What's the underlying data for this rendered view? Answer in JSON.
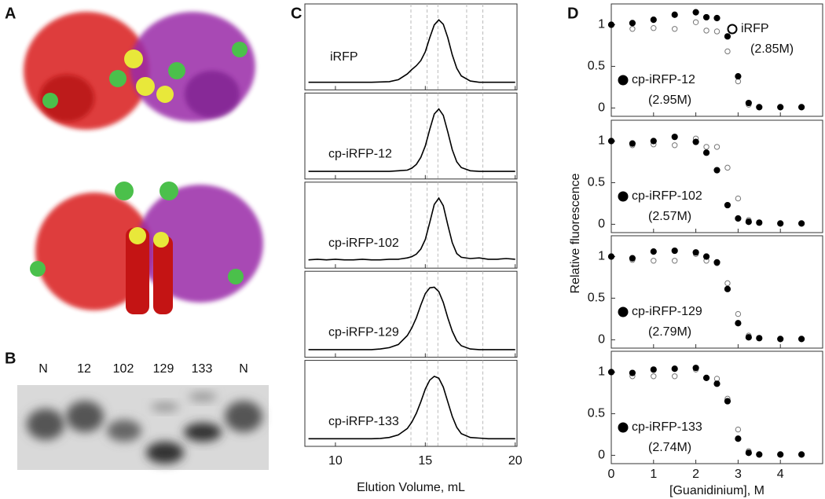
{
  "panel_a": {
    "label": "A"
  },
  "panel_b": {
    "label": "B",
    "lanes": [
      "N",
      "12",
      "102",
      "129",
      "133",
      "N"
    ]
  },
  "chart_data": [
    {
      "type": "line",
      "label": "C",
      "xlabel": "Elution Volume, mL",
      "xlim": [
        8.3,
        20.1
      ],
      "xticks": [
        10,
        15,
        20
      ],
      "ylim": [
        -0.1,
        1.25
      ],
      "vlines": [
        14.2,
        15.1,
        15.7,
        17.3,
        18.2
      ],
      "x": [
        8.5,
        9,
        9.5,
        10,
        10.5,
        11,
        11.5,
        12,
        12.5,
        13,
        13.5,
        14,
        14.25,
        14.5,
        14.75,
        15,
        15.25,
        15.5,
        15.75,
        16,
        16.25,
        16.5,
        16.75,
        17,
        17.5,
        18,
        18.5,
        19,
        19.5,
        20
      ],
      "series": [
        {
          "name": "iRFP",
          "color": "#000000",
          "values": [
            0.02,
            0.02,
            0.02,
            0.02,
            0.02,
            0.02,
            0.02,
            0.02,
            0.025,
            0.03,
            0.06,
            0.15,
            0.22,
            0.28,
            0.36,
            0.5,
            0.72,
            0.92,
            1.0,
            0.93,
            0.72,
            0.45,
            0.24,
            0.12,
            0.04,
            0.02,
            0.02,
            0.02,
            0.02,
            0.02
          ]
        },
        {
          "name": "cp-iRFP-12",
          "color": "#000000",
          "values": [
            0.02,
            0.02,
            0.02,
            0.02,
            0.02,
            0.02,
            0.02,
            0.02,
            0.02,
            0.02,
            0.03,
            0.04,
            0.07,
            0.13,
            0.24,
            0.42,
            0.68,
            0.92,
            1.0,
            0.9,
            0.64,
            0.36,
            0.17,
            0.08,
            0.03,
            0.02,
            0.02,
            0.02,
            0.02,
            0.02
          ]
        },
        {
          "name": "cp-iRFP-102",
          "color": "#000000",
          "values": [
            0.03,
            0.04,
            0.03,
            0.04,
            0.03,
            0.03,
            0.04,
            0.03,
            0.03,
            0.04,
            0.04,
            0.06,
            0.08,
            0.12,
            0.2,
            0.35,
            0.62,
            0.9,
            1.0,
            0.88,
            0.58,
            0.3,
            0.13,
            0.07,
            0.05,
            0.06,
            0.04,
            0.04,
            0.05,
            0.04
          ]
        },
        {
          "name": "cp-iRFP-129",
          "color": "#000000",
          "values": [
            0.02,
            0.02,
            0.02,
            0.02,
            0.02,
            0.02,
            0.02,
            0.02,
            0.03,
            0.05,
            0.1,
            0.24,
            0.36,
            0.52,
            0.72,
            0.9,
            0.99,
            1.0,
            0.93,
            0.76,
            0.52,
            0.31,
            0.16,
            0.08,
            0.03,
            0.02,
            0.02,
            0.02,
            0.02,
            0.02
          ]
        },
        {
          "name": "cp-iRFP-133",
          "color": "#000000",
          "values": [
            0.02,
            0.02,
            0.02,
            0.02,
            0.02,
            0.02,
            0.02,
            0.02,
            0.025,
            0.04,
            0.08,
            0.18,
            0.28,
            0.42,
            0.6,
            0.8,
            0.94,
            1.0,
            0.97,
            0.83,
            0.6,
            0.37,
            0.2,
            0.1,
            0.04,
            0.03,
            0.02,
            0.02,
            0.02,
            0.02
          ]
        }
      ]
    },
    {
      "type": "scatter",
      "label": "D",
      "xlabel": "[Guanidinium], M",
      "ylabel": "Relative fluorescence",
      "xlim": [
        0,
        5
      ],
      "xticks": [
        0,
        1,
        2,
        3,
        4
      ],
      "ylim": [
        -0.1,
        1.25
      ],
      "yticks": [
        0,
        0.5,
        1
      ],
      "panels": [
        {
          "series": [
            {
              "name": "iRFP",
              "midpoint_label": "(2.85M)",
              "marker": "open",
              "color": "#777777",
              "x": [
                0.5,
                1,
                1.5,
                2,
                2.25,
                2.5,
                2.75,
                3,
                3.25
              ],
              "values": [
                0.95,
                0.96,
                0.95,
                1.03,
                0.93,
                0.92,
                0.68,
                0.32,
                0.04
              ]
            },
            {
              "name": "cp-iRFP-12",
              "midpoint_label": "(2.95M)",
              "marker": "filled",
              "color": "#000000",
              "x": [
                0,
                0.5,
                1,
                1.5,
                2,
                2.25,
                2.5,
                2.75,
                3,
                3.25,
                3.5,
                4,
                4.5
              ],
              "values": [
                1,
                1.02,
                1.06,
                1.12,
                1.15,
                1.09,
                1.08,
                0.86,
                0.38,
                0.06,
                0.01,
                0.01,
                0.01
              ]
            }
          ]
        },
        {
          "series": [
            {
              "marker": "open",
              "color": "#777777",
              "x": [
                0.5,
                1,
                1.5,
                2,
                2.25,
                2.5,
                2.75,
                3,
                3.25
              ],
              "values": [
                0.95,
                0.96,
                0.95,
                1.03,
                0.93,
                0.93,
                0.68,
                0.31,
                0.05
              ]
            },
            {
              "name": "cp-iRFP-102",
              "midpoint_label": "(2.57M)",
              "marker": "filled",
              "color": "#000000",
              "x": [
                0,
                0.5,
                1,
                1.5,
                2,
                2.25,
                2.5,
                2.75,
                3,
                3.25,
                3.5,
                4,
                4.5
              ],
              "values": [
                1,
                0.97,
                1.0,
                1.05,
                0.99,
                0.86,
                0.65,
                0.23,
                0.07,
                0.03,
                0.02,
                0.01,
                0.01
              ]
            }
          ]
        },
        {
          "series": [
            {
              "marker": "open",
              "color": "#777777",
              "x": [
                0.5,
                1,
                1.5,
                2,
                2.25,
                2.5,
                2.75,
                3,
                3.25
              ],
              "values": [
                0.96,
                0.95,
                0.95,
                1.03,
                0.95,
                0.92,
                0.68,
                0.31,
                0.05
              ]
            },
            {
              "name": "cp-iRFP-129",
              "midpoint_label": "(2.79M)",
              "marker": "filled",
              "color": "#000000",
              "x": [
                0,
                0.5,
                1,
                1.5,
                2,
                2.25,
                2.5,
                2.75,
                3,
                3.25,
                3.5,
                4,
                4.5
              ],
              "values": [
                1,
                0.98,
                1.06,
                1.07,
                1.05,
                1.0,
                0.93,
                0.61,
                0.2,
                0.03,
                0.02,
                0.01,
                0.01
              ]
            }
          ]
        },
        {
          "series": [
            {
              "marker": "open",
              "color": "#777777",
              "x": [
                0.5,
                1,
                1.5,
                2,
                2.25,
                2.5,
                2.75,
                3,
                3.25
              ],
              "values": [
                0.95,
                0.95,
                0.95,
                1.03,
                0.93,
                0.92,
                0.68,
                0.31,
                0.05
              ]
            },
            {
              "name": "cp-iRFP-133",
              "midpoint_label": "(2.74M)",
              "marker": "filled",
              "color": "#000000",
              "x": [
                0,
                0.5,
                1,
                1.5,
                2,
                2.25,
                2.5,
                2.75,
                3,
                3.25,
                3.5,
                4,
                4.5
              ],
              "values": [
                1,
                0.99,
                1.03,
                1.04,
                1.05,
                0.93,
                0.86,
                0.65,
                0.2,
                0.03,
                0.01,
                0.01,
                0.01
              ]
            }
          ]
        }
      ]
    }
  ]
}
